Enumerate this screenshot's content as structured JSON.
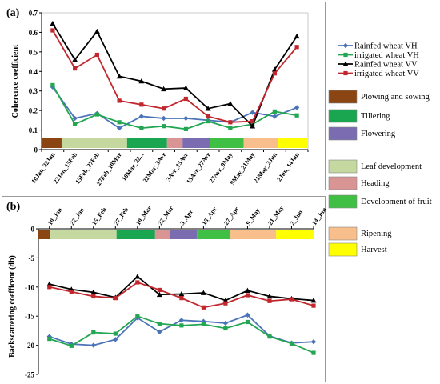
{
  "chart_data": [
    {
      "panel_label": "(a)",
      "type": "line",
      "ylabel": "Coherence coefficient",
      "ylim": [
        0,
        0.7
      ],
      "yticks": [
        "0",
        "0.1",
        "0.2",
        "0.3",
        "0.4",
        "0.5",
        "0.6",
        "0.7"
      ],
      "categories": [
        "10Jan_22Jan",
        "22Jan_15Feb",
        "15Feb_27Feb",
        "27Feb_10Mar",
        "10Mar_22...",
        "22Mar_3Avr",
        "3Avr_15Avr",
        "15Avr_27Avr",
        "27Avr_9May",
        "9May_21May",
        "21May_2Jun",
        "2Jun_14Jun"
      ],
      "series": [
        {
          "name": "Rainfed wheat VH",
          "color": "#4a73b8",
          "marker": "diamond",
          "values": [
            0.32,
            0.16,
            0.185,
            0.11,
            0.17,
            0.16,
            0.16,
            0.15,
            0.14,
            0.19,
            0.17,
            0.215
          ]
        },
        {
          "name": "irrigated wheat VH",
          "color": "#22a651",
          "marker": "square",
          "values": [
            0.33,
            0.13,
            0.18,
            0.14,
            0.11,
            0.12,
            0.105,
            0.145,
            0.11,
            0.13,
            0.195,
            0.175
          ]
        },
        {
          "name": "Rainfed wheat VV",
          "color": "#000000",
          "marker": "triangle",
          "values": [
            0.645,
            0.46,
            0.605,
            0.375,
            0.35,
            0.31,
            0.315,
            0.21,
            0.235,
            0.12,
            0.41,
            0.58
          ]
        },
        {
          "name": "irrigated wheat VV",
          "color": "#c1272d",
          "marker": "square",
          "values": [
            0.61,
            0.415,
            0.485,
            0.25,
            0.23,
            0.21,
            0.26,
            0.17,
            0.14,
            0.145,
            0.39,
            0.525
          ]
        }
      ],
      "stage_bar": [
        "Plowing and sowing",
        "Leaf development",
        "Tillering",
        "Heading",
        "Flowering",
        "Development of fruit",
        "Ripening",
        "Harvest"
      ]
    },
    {
      "panel_label": "(b)",
      "type": "line",
      "ylabel": "Backscattering coefficent (db)",
      "ylim": [
        -25,
        0
      ],
      "yticks": [
        "0",
        "-5",
        "-10",
        "-15",
        "-20",
        "-25"
      ],
      "categories": [
        "10_Jan",
        "22_Jan",
        "15_Feb",
        "27_Feb",
        "10_Mar",
        "22_Mar",
        "3_Apr",
        "15_Apr",
        "27_Apr",
        "9_May",
        "21_May",
        "2_Jun",
        "14_Jun"
      ],
      "series": [
        {
          "name": "Rainfed wheat VH",
          "color": "#4a73b8",
          "marker": "diamond",
          "values": [
            -18.5,
            -19.8,
            -20.0,
            -19.0,
            -15.3,
            -17.7,
            -15.7,
            -15.9,
            -16.2,
            -14.8,
            -18.4,
            -19.6,
            -19.4
          ]
        },
        {
          "name": "irrigated wheat VH",
          "color": "#22a651",
          "marker": "square",
          "values": [
            -18.9,
            -20.1,
            -17.8,
            -18.0,
            -15.0,
            -16.3,
            -16.6,
            -16.4,
            -17.1,
            -16.0,
            -18.5,
            -19.7,
            -21.3
          ]
        },
        {
          "name": "Rainfed wheat VV",
          "color": "#000000",
          "marker": "triangle",
          "values": [
            -9.5,
            -10.4,
            -10.9,
            -11.8,
            -8.2,
            -11.3,
            -11.2,
            -11.0,
            -12.3,
            -10.6,
            -11.6,
            -12.0,
            -12.3
          ]
        },
        {
          "name": "irrigated wheat VV",
          "color": "#c1272d",
          "marker": "square",
          "values": [
            -10.0,
            -10.8,
            -11.6,
            -11.9,
            -9.2,
            -10.5,
            -11.9,
            -13.5,
            -12.8,
            -11.4,
            -12.4,
            -12.1,
            -13.2
          ]
        }
      ],
      "stage_bar": [
        "Plowing and sowing",
        "Leaf development",
        "Tillering",
        "Heading",
        "Flowering",
        "Development of fruit",
        "Ripening",
        "Harvest"
      ]
    }
  ],
  "legend_series": [
    {
      "name": "Rainfed wheat VH",
      "color": "#4a73b8",
      "marker": "diamond"
    },
    {
      "name": "irrigated wheat VH",
      "color": "#22a651",
      "marker": "square"
    },
    {
      "name": "Rainfed wheat VV",
      "color": "#000000",
      "marker": "triangle"
    },
    {
      "name": "irrigated wheat VV",
      "color": "#c1272d",
      "marker": "square"
    }
  ],
  "stage_legend": [
    {
      "name": "Plowing and sowing",
      "color": "#8b4513"
    },
    {
      "name": "Tillering",
      "color": "#1aa550"
    },
    {
      "name": "Flowering",
      "color": "#7b6bb0"
    },
    {
      "name": "Leaf development",
      "color": "#c4d8a0"
    },
    {
      "name": "Heading",
      "color": "#d99594"
    },
    {
      "name": "Development of fruit",
      "color": "#3fc044"
    },
    {
      "name": "Ripening",
      "color": "#f8bf8c"
    },
    {
      "name": "Harvest",
      "color": "#ffff00"
    }
  ]
}
